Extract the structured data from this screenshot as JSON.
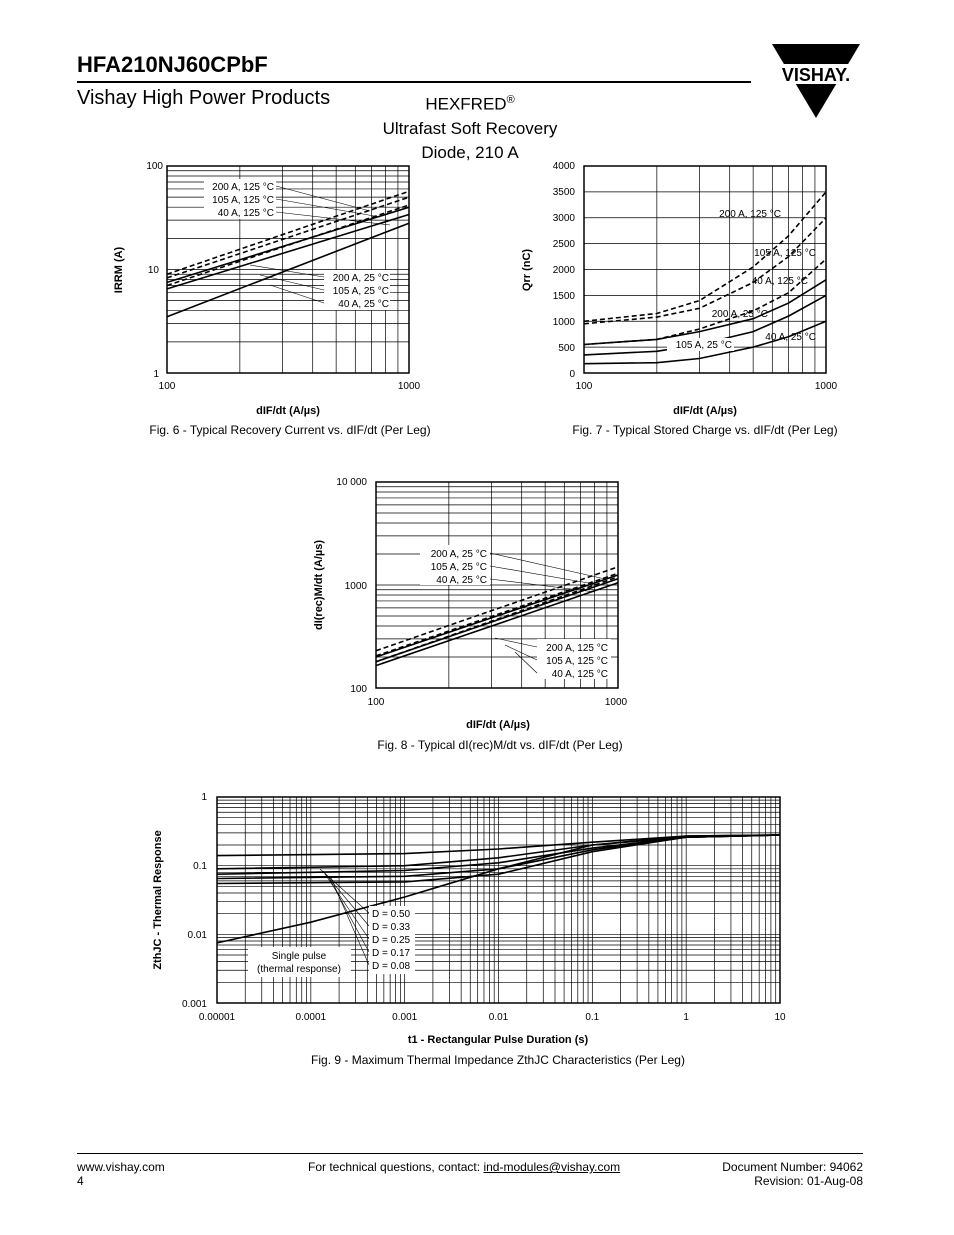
{
  "header": {
    "part_number": "HFA210NJ60CPbF",
    "division": "Vishay High Power Products",
    "product_line": "HEXFRED",
    "product_line_mark": "®",
    "description_line1": "Ultrafast Soft Recovery",
    "description_line2": "Diode, 210 A",
    "logo_text": "VISHAY."
  },
  "figures": {
    "fig6": {
      "caption": "Fig. 6 - Typical Recovery Current vs. dIF/dt (Per Leg)",
      "ylabel": "IRRM (A)",
      "xlabel": "dIF/dt (A/µs)",
      "y_ticks": [
        "100",
        "10",
        "1"
      ],
      "x_ticks": [
        "100",
        "1000"
      ],
      "legend_125": [
        "200 A, 125 °C",
        "105 A, 125 °C",
        "40 A, 125 °C"
      ],
      "legend_25": [
        "200 A, 25 °C",
        "105 A, 25 °C",
        "40 A, 25 °C"
      ]
    },
    "fig7": {
      "caption": "Fig. 7 - Typical Stored Charge vs. dIF/dt (Per Leg)",
      "ylabel": "Qrr (nC)",
      "xlabel": "dIF/dt (A/µs)",
      "y_ticks": [
        "4000",
        "3500",
        "3000",
        "2500",
        "2000",
        "1500",
        "1000",
        "500",
        "0"
      ],
      "x_ticks": [
        "100",
        "1000"
      ],
      "labels": [
        "200 A, 125 °C",
        "105 A, 125 °C",
        "40 A, 125 °C",
        "200 A, 25 °C",
        "105 A, 25 °C",
        "40 A, 25 °C"
      ]
    },
    "fig8": {
      "caption": "Fig. 8 - Typical dI(rec)M/dt vs. dIF/dt (Per Leg)",
      "ylabel": "dI(rec)M/dt (A/µs)",
      "xlabel": "dIF/dt (A/µs)",
      "y_ticks": [
        "10 000",
        "1000",
        "100"
      ],
      "x_ticks": [
        "100",
        "1000"
      ],
      "legend_25": [
        "200 A, 25 °C",
        "105 A, 25 °C",
        "40 A, 25 °C"
      ],
      "legend_125": [
        "200 A, 125 °C",
        "105 A, 125 °C",
        "40 A, 125 °C"
      ]
    },
    "fig9": {
      "caption": "Fig. 9 - Maximum Thermal Impedance ZthJC Characteristics (Per Leg)",
      "ylabel": "ZthJC - Thermal Response",
      "xlabel": "t1 - Rectangular Pulse Duration (s)",
      "y_ticks": [
        "1",
        "0.1",
        "0.01",
        "0.001"
      ],
      "x_ticks": [
        "0.00001",
        "0.0001",
        "0.001",
        "0.01",
        "0.1",
        "1",
        "10"
      ],
      "legend": [
        "D = 0.50",
        "D = 0.33",
        "D = 0.25",
        "D = 0.17",
        "D = 0.08"
      ],
      "single_pulse_line1": "Single pulse",
      "single_pulse_line2": "(thermal response)"
    }
  },
  "chart_data": [
    {
      "type": "line",
      "title": "Fig. 6 - Typical Recovery Current vs. dIF/dt (Per Leg)",
      "xlabel": "dIF/dt (A/µs)",
      "ylabel": "IRRM (A)",
      "x_scale": "log",
      "y_scale": "log",
      "xlim": [
        100,
        1000
      ],
      "ylim": [
        1,
        100
      ],
      "grid": true,
      "series": [
        {
          "name": "200 A, 125 °C",
          "style": "dashed",
          "x": [
            100,
            1000
          ],
          "y": [
            9,
            57
          ]
        },
        {
          "name": "105 A, 125 °C",
          "style": "dashed",
          "x": [
            100,
            1000
          ],
          "y": [
            8.3,
            50
          ]
        },
        {
          "name": "40 A, 125 °C",
          "style": "dashed",
          "x": [
            100,
            1000
          ],
          "y": [
            7,
            42
          ]
        },
        {
          "name": "200 A, 25 °C",
          "style": "solid",
          "x": [
            100,
            1000
          ],
          "y": [
            7.5,
            40
          ]
        },
        {
          "name": "105 A, 25 °C",
          "style": "solid",
          "x": [
            100,
            1000
          ],
          "y": [
            6.5,
            34
          ]
        },
        {
          "name": "40 A, 25 °C",
          "style": "solid",
          "x": [
            100,
            1000
          ],
          "y": [
            3.5,
            28
          ]
        }
      ]
    },
    {
      "type": "line",
      "title": "Fig. 7 - Typical Stored Charge vs. dIF/dt (Per Leg)",
      "xlabel": "dIF/dt (A/µs)",
      "ylabel": "Qrr (nC)",
      "x_scale": "log",
      "xlim": [
        100,
        1000
      ],
      "ylim": [
        0,
        4000
      ],
      "grid": true,
      "series": [
        {
          "name": "200 A, 125 °C",
          "style": "dashed",
          "x": [
            100,
            200,
            300,
            500,
            700,
            1000
          ],
          "y": [
            1000,
            1150,
            1400,
            2050,
            2650,
            3500
          ]
        },
        {
          "name": "105 A, 125 °C",
          "style": "dashed",
          "x": [
            100,
            200,
            300,
            500,
            700,
            1000
          ],
          "y": [
            950,
            1080,
            1250,
            1750,
            2250,
            3000
          ]
        },
        {
          "name": "40 A, 125 °C",
          "style": "dashed",
          "x": [
            100,
            200,
            300,
            500,
            700,
            1000
          ],
          "y": [
            550,
            650,
            850,
            1200,
            1550,
            2200
          ]
        },
        {
          "name": "200 A, 25 °C",
          "style": "solid",
          "x": [
            100,
            200,
            300,
            500,
            700,
            1000
          ],
          "y": [
            550,
            650,
            800,
            1050,
            1350,
            1800
          ]
        },
        {
          "name": "105 A, 25 °C",
          "style": "solid",
          "x": [
            100,
            200,
            300,
            500,
            700,
            1000
          ],
          "y": [
            350,
            420,
            550,
            800,
            1100,
            1500
          ]
        },
        {
          "name": "40 A, 25 °C",
          "style": "solid",
          "x": [
            100,
            200,
            300,
            500,
            700,
            1000
          ],
          "y": [
            180,
            200,
            280,
            500,
            700,
            1000
          ]
        }
      ]
    },
    {
      "type": "line",
      "title": "Fig. 8 - Typical dI(rec)M/dt vs. dIF/dt (Per Leg)",
      "xlabel": "dIF/dt (A/µs)",
      "ylabel": "dI(rec)M/dt (A/µs)",
      "x_scale": "log",
      "y_scale": "log",
      "xlim": [
        100,
        1000
      ],
      "ylim": [
        100,
        10000
      ],
      "grid": true,
      "series": [
        {
          "name": "200 A, 25 °C",
          "style": "solid",
          "x": [
            100,
            1000
          ],
          "y": [
            200,
            1250
          ]
        },
        {
          "name": "105 A, 25 °C",
          "style": "solid",
          "x": [
            100,
            1000
          ],
          "y": [
            180,
            1150
          ]
        },
        {
          "name": "40 A, 25 °C",
          "style": "solid",
          "x": [
            100,
            1000
          ],
          "y": [
            165,
            1050
          ]
        },
        {
          "name": "200 A, 125 °C",
          "style": "dashed",
          "x": [
            100,
            1000
          ],
          "y": [
            230,
            1500
          ]
        },
        {
          "name": "105 A, 125 °C",
          "style": "dashed",
          "x": [
            100,
            1000
          ],
          "y": [
            205,
            1300
          ]
        },
        {
          "name": "40 A, 125 °C",
          "style": "dashed",
          "x": [
            100,
            1000
          ],
          "y": [
            180,
            1200
          ]
        }
      ]
    },
    {
      "type": "line",
      "title": "Fig. 9 - Maximum Thermal Impedance ZthJC Characteristics (Per Leg)",
      "xlabel": "t1 - Rectangular Pulse Duration (s)",
      "ylabel": "ZthJC - Thermal Response",
      "x_scale": "log",
      "y_scale": "log",
      "xlim": [
        1e-05,
        10
      ],
      "ylim": [
        0.001,
        1
      ],
      "grid": true,
      "series": [
        {
          "name": "D = 0.50",
          "x": [
            1e-05,
            0.001,
            0.01,
            0.1,
            1,
            10
          ],
          "y": [
            0.14,
            0.15,
            0.175,
            0.22,
            0.27,
            0.28
          ]
        },
        {
          "name": "D = 0.33",
          "x": [
            1e-05,
            0.001,
            0.01,
            0.1,
            1,
            10
          ],
          "y": [
            0.09,
            0.1,
            0.13,
            0.2,
            0.26,
            0.28
          ]
        },
        {
          "name": "D = 0.25",
          "x": [
            1e-05,
            0.001,
            0.01,
            0.1,
            1,
            10
          ],
          "y": [
            0.075,
            0.085,
            0.11,
            0.18,
            0.26,
            0.28
          ]
        },
        {
          "name": "D = 0.17",
          "x": [
            1e-05,
            0.001,
            0.01,
            0.1,
            1,
            10
          ],
          "y": [
            0.065,
            0.07,
            0.09,
            0.17,
            0.26,
            0.28
          ]
        },
        {
          "name": "D = 0.08",
          "x": [
            1e-05,
            0.001,
            0.01,
            0.1,
            1,
            10
          ],
          "y": [
            0.055,
            0.058,
            0.075,
            0.16,
            0.26,
            0.28
          ]
        },
        {
          "name": "Single pulse (thermal response)",
          "x": [
            1e-05,
            0.0001,
            0.001,
            0.01,
            0.1,
            1,
            10
          ],
          "y": [
            0.0075,
            0.015,
            0.035,
            0.09,
            0.2,
            0.27,
            0.28
          ]
        }
      ]
    }
  ],
  "footer": {
    "website": "www.vishay.com",
    "page": "4",
    "contact_prefix": "For technical questions, contact: ",
    "contact_email": "ind-modules@vishay.com",
    "doc_number": "Document Number: 94062",
    "revision": "Revision: 01-Aug-08"
  }
}
